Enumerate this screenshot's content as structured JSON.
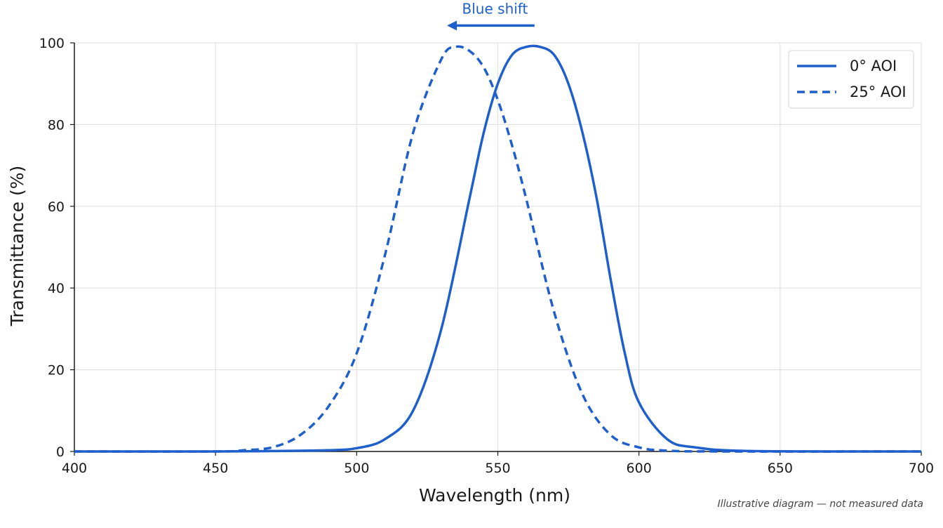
{
  "chart_data": {
    "type": "line",
    "xlabel": "Wavelength (nm)",
    "ylabel": "Transmittance (%)",
    "xlim": [
      400,
      700
    ],
    "ylim": [
      0,
      100
    ],
    "x_ticks": [
      400,
      450,
      500,
      550,
      600,
      650,
      700
    ],
    "y_ticks": [
      0,
      20,
      40,
      60,
      80,
      100
    ],
    "grid": true,
    "legend_position": "top-right",
    "color": "#1f5fcc",
    "series": [
      {
        "name": "0° AOI",
        "line_style": "solid",
        "x": [
          400,
          450,
          470,
          490,
          500,
          510,
          520,
          530,
          540,
          545,
          550,
          555,
          560,
          565,
          570,
          575,
          580,
          585,
          590,
          595,
          600,
          610,
          620,
          640,
          700
        ],
        "y": [
          0,
          0,
          0.1,
          0.3,
          0.8,
          3,
          10,
          30,
          62,
          78,
          90,
          97,
          99,
          99,
          97,
          90,
          78,
          62,
          42,
          24,
          12,
          3,
          1,
          0.1,
          0
        ],
        "peak_center_nm": 565,
        "peak_value": 99
      },
      {
        "name": "25° AOI",
        "line_style": "dashed",
        "x": [
          400,
          450,
          460,
          470,
          480,
          490,
          500,
          510,
          520,
          530,
          535,
          540,
          545,
          550,
          555,
          560,
          570,
          580,
          590,
          600,
          610,
          630,
          700
        ],
        "y": [
          0,
          0,
          0.3,
          1,
          4,
          11,
          24,
          48,
          78,
          96,
          99,
          98,
          94,
          86,
          75,
          62,
          34,
          14,
          4,
          1,
          0.2,
          0,
          0
        ],
        "peak_center_nm": 536,
        "peak_value": 99
      }
    ],
    "annotations": [
      {
        "text": "Blue shift",
        "arrow_from_x": 563,
        "arrow_to_x": 532,
        "arrow_y": 102
      }
    ],
    "footnote": "Illustrative diagram — not measured data"
  }
}
